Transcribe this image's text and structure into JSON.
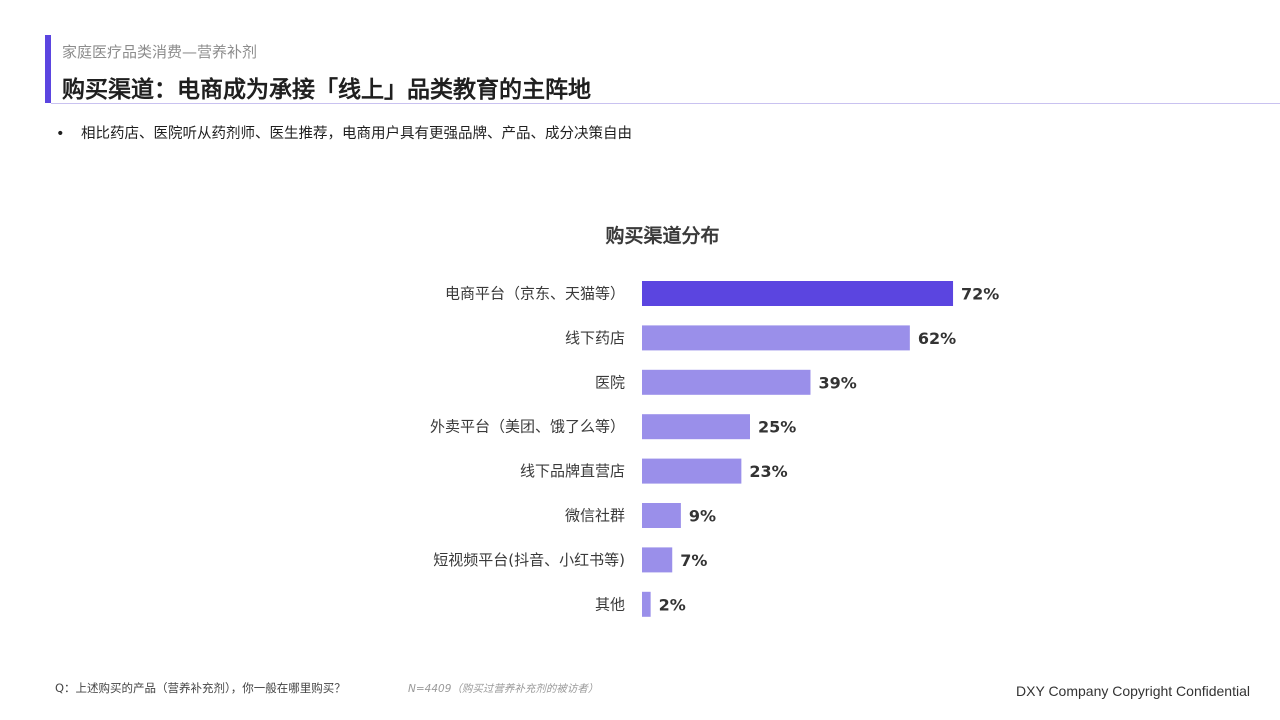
{
  "header": {
    "section_label": "家庭医疗品类消费—营养补剂",
    "title": "购买渠道：电商成为承接「线上」品类教育的主阵地",
    "accent_color": "#5b45e0"
  },
  "bullet": {
    "marker": "•",
    "text": "相比药店、医院听从药剂师、医生推荐，电商用户具有更强品牌、产品、成分决策自由"
  },
  "chart_data": {
    "type": "bar",
    "orientation": "horizontal",
    "title": "购买渠道分布",
    "categories": [
      "电商平台（京东、天猫等）",
      "线下药店",
      "医院",
      "外卖平台（美团、饿了么等）",
      "线下品牌直营店",
      "微信社群",
      "短视频平台(抖音、小红书等)",
      "其他"
    ],
    "values": [
      72,
      62,
      39,
      25,
      23,
      9,
      7,
      2
    ],
    "value_labels": [
      "72%",
      "62%",
      "39%",
      "25%",
      "23%",
      "9%",
      "7%",
      "2%"
    ],
    "unit": "%",
    "xlim": [
      0,
      100
    ],
    "highlight_index": 0,
    "colors": {
      "highlight": "#5b45e0",
      "default": "#9a8fea"
    },
    "grid": false,
    "legend": "none"
  },
  "footer": {
    "question": "Q：上述购买的产品（营养补充剂），你一般在哪里购买？",
    "sample": "N=4409（购买过营养补充剂的被访者）",
    "copyright": "DXY Company Copyright Confidential"
  }
}
